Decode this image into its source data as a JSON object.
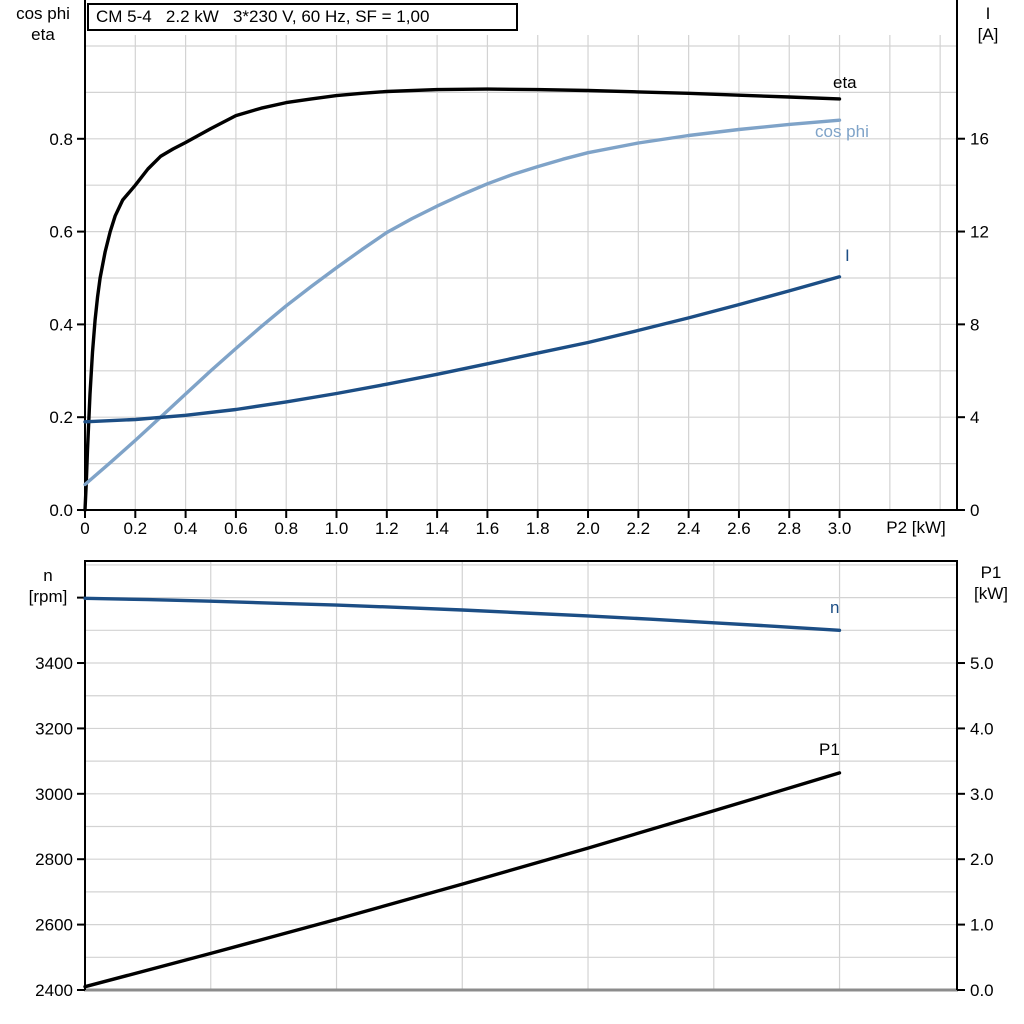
{
  "colors": {
    "eta_black": "#000000",
    "light_blue": "#7fa3c8",
    "dark_blue": "#1c4e85",
    "grid": "#d3d3d3",
    "axis": "#000000",
    "frame_gray": "#8c8c8c"
  },
  "chart_data": [
    {
      "id": "motor",
      "type": "line",
      "title": "CM 5-4   2.2 kW   3*230 V, 60 Hz, SF = 1,00",
      "x_axis": {
        "label": "P2 [kW]",
        "range": [
          0,
          3.467
        ],
        "grid_step": 0.2,
        "grid_max": 3.4,
        "ticks": [
          {
            "v": 0,
            "label": "0"
          },
          {
            "v": 0.2,
            "label": "0.2"
          },
          {
            "v": 0.4,
            "label": "0.4"
          },
          {
            "v": 0.6,
            "label": "0.6"
          },
          {
            "v": 0.8,
            "label": "0.8"
          },
          {
            "v": 1.0,
            "label": "1.0"
          },
          {
            "v": 1.2,
            "label": "1.2"
          },
          {
            "v": 1.4,
            "label": "1.4"
          },
          {
            "v": 1.6,
            "label": "1.6"
          },
          {
            "v": 1.8,
            "label": "1.8"
          },
          {
            "v": 2.0,
            "label": "2.0"
          },
          {
            "v": 2.2,
            "label": "2.2"
          },
          {
            "v": 2.4,
            "label": "2.4"
          },
          {
            "v": 2.6,
            "label": "2.6"
          },
          {
            "v": 2.8,
            "label": "2.8"
          },
          {
            "v": 3.0,
            "label": "3.0"
          }
        ]
      },
      "y_left": {
        "title_lines": [
          "cos phi",
          "eta"
        ],
        "range": [
          0,
          1.0237
        ],
        "grid_step": 0.1,
        "grid_max": 1.0,
        "ticks": [
          {
            "v": 0.0,
            "label": "0.0"
          },
          {
            "v": 0.2,
            "label": "0.2"
          },
          {
            "v": 0.4,
            "label": "0.4"
          },
          {
            "v": 0.6,
            "label": "0.6"
          },
          {
            "v": 0.8,
            "label": "0.8"
          }
        ]
      },
      "y_right": {
        "title_lines": [
          "I",
          "[A]"
        ],
        "range": [
          0,
          20.47
        ],
        "ticks": [
          {
            "v": 0,
            "label": "0"
          },
          {
            "v": 4,
            "label": "4"
          },
          {
            "v": 8,
            "label": "8"
          },
          {
            "v": 12,
            "label": "12"
          },
          {
            "v": 16,
            "label": "16"
          }
        ]
      },
      "series": [
        {
          "name": "eta",
          "axis": "left",
          "color": "#000000",
          "points": [
            [
              0,
              0
            ],
            [
              0.005,
              0.06
            ],
            [
              0.01,
              0.13
            ],
            [
              0.02,
              0.25
            ],
            [
              0.03,
              0.34
            ],
            [
              0.04,
              0.41
            ],
            [
              0.05,
              0.46
            ],
            [
              0.06,
              0.5
            ],
            [
              0.08,
              0.556
            ],
            [
              0.1,
              0.6
            ],
            [
              0.12,
              0.634
            ],
            [
              0.15,
              0.668
            ],
            [
              0.2,
              0.7
            ],
            [
              0.25,
              0.735
            ],
            [
              0.3,
              0.762
            ],
            [
              0.35,
              0.778
            ],
            [
              0.4,
              0.792
            ],
            [
              0.5,
              0.822
            ],
            [
              0.6,
              0.85
            ],
            [
              0.7,
              0.866
            ],
            [
              0.8,
              0.878
            ],
            [
              0.9,
              0.886
            ],
            [
              1.0,
              0.893
            ],
            [
              1.1,
              0.898
            ],
            [
              1.2,
              0.902
            ],
            [
              1.4,
              0.906
            ],
            [
              1.6,
              0.907
            ],
            [
              1.8,
              0.906
            ],
            [
              2.0,
              0.904
            ],
            [
              2.2,
              0.901
            ],
            [
              2.4,
              0.898
            ],
            [
              2.6,
              0.894
            ],
            [
              2.8,
              0.89
            ],
            [
              3.0,
              0.886
            ]
          ]
        },
        {
          "name": "cos phi",
          "axis": "left",
          "color": "#7fa3c8",
          "points": [
            [
              0,
              0.055
            ],
            [
              0.1,
              0.102
            ],
            [
              0.2,
              0.15
            ],
            [
              0.3,
              0.2
            ],
            [
              0.4,
              0.25
            ],
            [
              0.5,
              0.3
            ],
            [
              0.6,
              0.348
            ],
            [
              0.7,
              0.395
            ],
            [
              0.8,
              0.44
            ],
            [
              0.9,
              0.482
            ],
            [
              1.0,
              0.522
            ],
            [
              1.1,
              0.561
            ],
            [
              1.2,
              0.598
            ],
            [
              1.3,
              0.628
            ],
            [
              1.4,
              0.655
            ],
            [
              1.5,
              0.68
            ],
            [
              1.6,
              0.703
            ],
            [
              1.7,
              0.723
            ],
            [
              1.8,
              0.74
            ],
            [
              1.9,
              0.756
            ],
            [
              2.0,
              0.77
            ],
            [
              2.2,
              0.791
            ],
            [
              2.4,
              0.807
            ],
            [
              2.6,
              0.82
            ],
            [
              2.8,
              0.831
            ],
            [
              3.0,
              0.84
            ]
          ]
        },
        {
          "name": "I",
          "axis": "right",
          "color": "#1c4e85",
          "points": [
            [
              0,
              3.8
            ],
            [
              0.2,
              3.9
            ],
            [
              0.4,
              4.08
            ],
            [
              0.6,
              4.33
            ],
            [
              0.8,
              4.66
            ],
            [
              1.0,
              5.02
            ],
            [
              1.2,
              5.42
            ],
            [
              1.4,
              5.85
            ],
            [
              1.6,
              6.3
            ],
            [
              1.8,
              6.76
            ],
            [
              2.0,
              7.22
            ],
            [
              2.2,
              7.74
            ],
            [
              2.4,
              8.28
            ],
            [
              2.6,
              8.85
            ],
            [
              2.8,
              9.44
            ],
            [
              3.0,
              10.05
            ]
          ]
        }
      ]
    },
    {
      "id": "speed",
      "type": "line",
      "title": "",
      "x_axis": {
        "label": "",
        "range": [
          0,
          3.467
        ],
        "grid_step": 0.5,
        "grid_max": 3.0,
        "ticks": []
      },
      "y_left": {
        "title_lines": [
          "n",
          "[rpm]"
        ],
        "range": [
          2400,
          3712
        ],
        "grid_step": 100,
        "grid_max": 3700,
        "ticks": [
          {
            "v": 2400,
            "label": "2400"
          },
          {
            "v": 2600,
            "label": "2600"
          },
          {
            "v": 2800,
            "label": "2800"
          },
          {
            "v": 3000,
            "label": "3000"
          },
          {
            "v": 3200,
            "label": "3200"
          },
          {
            "v": 3400,
            "label": "3400"
          },
          {
            "v": 3600,
            "label": ""
          }
        ]
      },
      "y_right": {
        "title_lines": [
          "P1",
          "[kW]"
        ],
        "range": [
          0,
          6.56
        ],
        "ticks": [
          {
            "v": 0.0,
            "label": "0.0"
          },
          {
            "v": 1.0,
            "label": "1.0"
          },
          {
            "v": 2.0,
            "label": "2.0"
          },
          {
            "v": 3.0,
            "label": "3.0"
          },
          {
            "v": 4.0,
            "label": "4.0"
          },
          {
            "v": 5.0,
            "label": "5.0"
          }
        ]
      },
      "series": [
        {
          "name": "n",
          "axis": "left",
          "color": "#1c4e85",
          "points": [
            [
              0,
              3598
            ],
            [
              0.25,
              3594
            ],
            [
              0.5,
              3589
            ],
            [
              0.75,
              3583
            ],
            [
              1.0,
              3577
            ],
            [
              1.25,
              3570
            ],
            [
              1.5,
              3562
            ],
            [
              1.75,
              3553
            ],
            [
              2.0,
              3544
            ],
            [
              2.25,
              3534
            ],
            [
              2.5,
              3523
            ],
            [
              2.75,
              3512
            ],
            [
              3.0,
              3500
            ]
          ]
        },
        {
          "name": "P1",
          "axis": "right",
          "color": "#000000",
          "points": [
            [
              0,
              0.05
            ],
            [
              0.5,
              0.56
            ],
            [
              1.0,
              1.08
            ],
            [
              1.5,
              1.62
            ],
            [
              2.0,
              2.17
            ],
            [
              2.5,
              2.74
            ],
            [
              3.0,
              3.32
            ]
          ]
        }
      ]
    }
  ]
}
